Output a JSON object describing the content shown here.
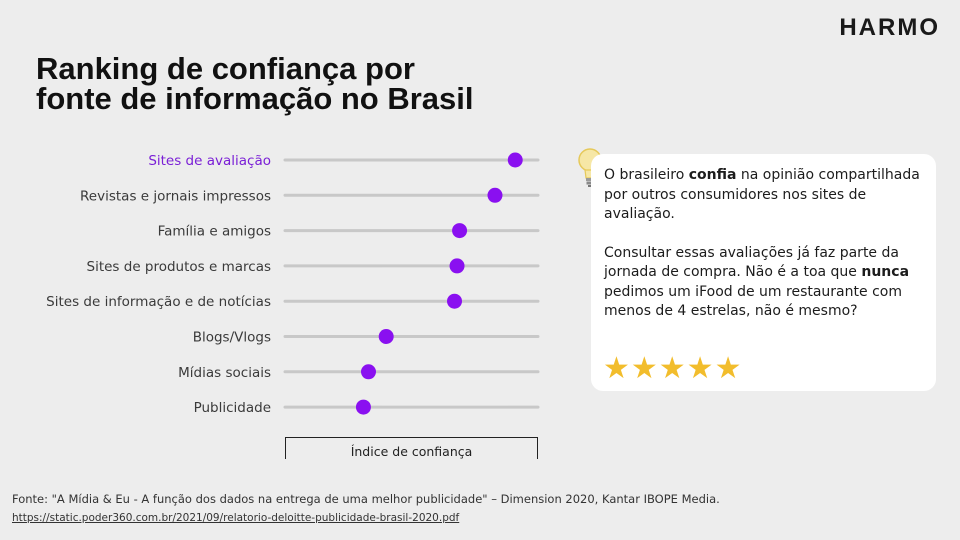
{
  "brand": {
    "logo": "HARMO"
  },
  "title_lines": [
    "Ranking de confiança por",
    "fonte de informação no Brasil"
  ],
  "colors": {
    "accent": "#8a10f0",
    "highlight_label": "#7a1fd6",
    "track": "#c8c8c8",
    "star": "#f2bd2c"
  },
  "chart_data": {
    "type": "scatter",
    "title": "Ranking de confiança por fonte de informação no Brasil",
    "xlabel": "Índice de confiança",
    "ylabel": "",
    "xlim": [
      0,
      100
    ],
    "grid": false,
    "categories": [
      "Sites de avaliação",
      "Revistas e jornais impressos",
      "Família e amigos",
      "Sites de produtos e marcas",
      "Sites de informação e de notícias",
      "Blogs/Vlogs",
      "Mídias sociais",
      "Publicidade"
    ],
    "values": [
      91,
      83,
      69,
      68,
      67,
      40,
      33,
      31
    ],
    "highlighted_category": "Sites de avaliação"
  },
  "callout": {
    "p1": [
      {
        "text": "O brasileiro ",
        "bold": false
      },
      {
        "text": "confia",
        "bold": true
      },
      {
        "text": " na opinião compartilhada por outros consumidores nos sites de avaliação.",
        "bold": false
      }
    ],
    "p2": [
      {
        "text": "Consultar essas avaliações já faz parte da jornada de compra. Não é a toa que ",
        "bold": false
      },
      {
        "text": "nunca",
        "bold": true
      },
      {
        "text": " pedimos um iFood de um restaurante com menos de 4 estrelas, não é mesmo?",
        "bold": false
      }
    ],
    "stars": "★★★★★",
    "icon": "lightbulb-icon"
  },
  "source": {
    "text": "Fonte: \"A Mídia & Eu - A função dos dados na entrega de uma melhor publicidade\" – Dimension 2020, Kantar IBOPE Media.",
    "url": "https://static.poder360.com.br/2021/09/relatorio-deloitte-publicidade-brasil-2020.pdf"
  }
}
